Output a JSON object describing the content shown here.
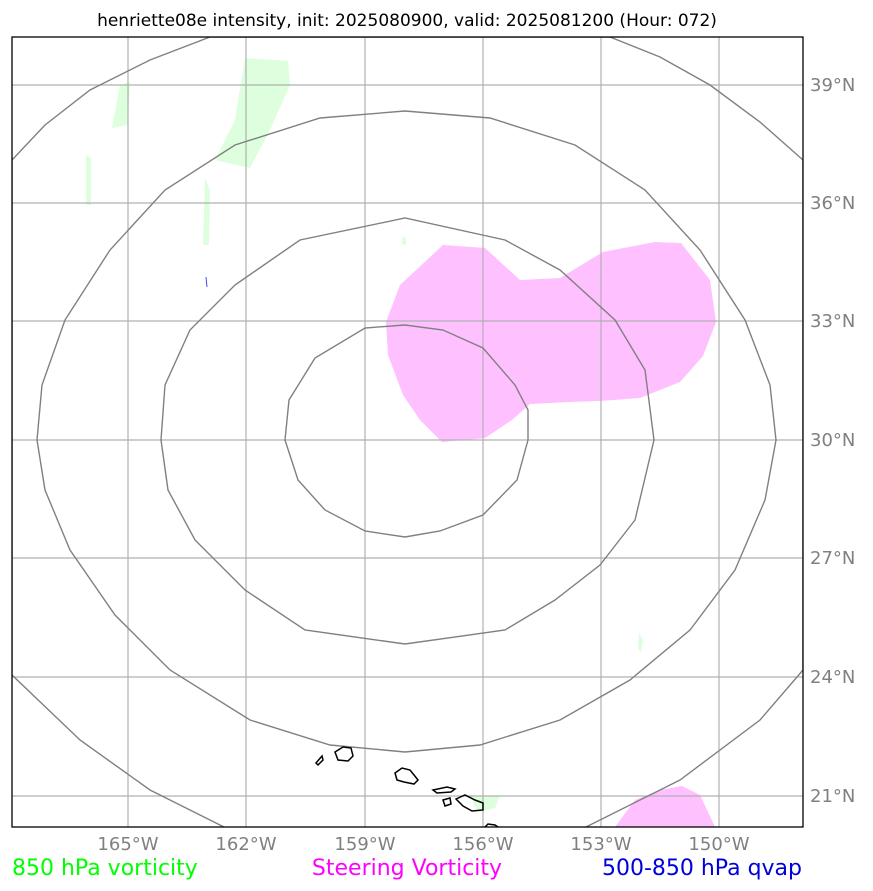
{
  "title": "henriette08e intensity, init: 2025080900, valid: 2025081200 (Hour: 072)",
  "map": {
    "lon_ticks": [
      "165°W",
      "162°W",
      "159°W",
      "156°W",
      "153°W",
      "150°W"
    ],
    "lat_ticks": [
      "39°N",
      "36°N",
      "33°N",
      "30°N",
      "27°N",
      "24°N",
      "21°N"
    ]
  },
  "legend": {
    "vorticity_850": {
      "label": "850 hPa vorticity",
      "color": "#00ff00"
    },
    "steering_vorticity": {
      "label": "Steering Vorticity",
      "color": "#ff00ff"
    },
    "qvap": {
      "label": "500-850 hPa qvap",
      "color": "#0000dd"
    }
  },
  "colors": {
    "vorticity_fill": "#ddffdd",
    "steering_fill": "#ffc0ff",
    "range_rings": "#808080",
    "grid": "#b0b0b0",
    "coastline": "#000000"
  }
}
